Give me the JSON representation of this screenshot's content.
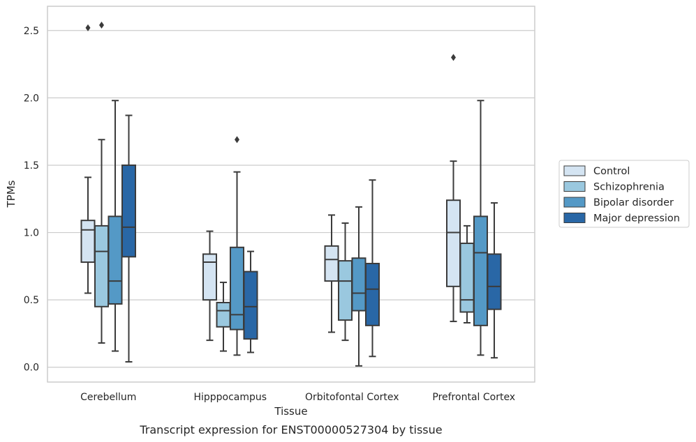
{
  "chart_data": {
    "type": "boxplot",
    "caption": "Transcript expression for ENST00000527304 by tissue",
    "xlabel": "Tissue",
    "ylabel": "TPMs",
    "ylim": [
      -0.11,
      2.68
    ],
    "yticks": [
      0.0,
      0.5,
      1.0,
      1.5,
      2.0,
      2.5
    ],
    "ytick_labels": [
      "0.0",
      "0.5",
      "1.0",
      "1.5",
      "2.0",
      "2.5"
    ],
    "grid": "horizontal",
    "legend_placement": "right",
    "categories": [
      "Cerebellum",
      "Hipppocampus",
      "Orbitofontal Cortex",
      "Prefrontal Cortex"
    ],
    "series": [
      {
        "name": "Control",
        "color": "#d4e4f2",
        "boxes": [
          {
            "whislo": 0.55,
            "q1": 0.78,
            "med": 1.02,
            "q3": 1.09,
            "whishi": 1.41,
            "fliers": [
              2.52
            ]
          },
          {
            "whislo": 0.2,
            "q1": 0.5,
            "med": 0.78,
            "q3": 0.84,
            "whishi": 1.01,
            "fliers": []
          },
          {
            "whislo": 0.26,
            "q1": 0.64,
            "med": 0.8,
            "q3": 0.9,
            "whishi": 1.13,
            "fliers": []
          },
          {
            "whislo": 0.34,
            "q1": 0.6,
            "med": 1.0,
            "q3": 1.24,
            "whishi": 1.53,
            "fliers": [
              2.3
            ]
          }
        ]
      },
      {
        "name": "Schizophrenia",
        "color": "#9ac8df",
        "boxes": [
          {
            "whislo": 0.18,
            "q1": 0.45,
            "med": 0.86,
            "q3": 1.05,
            "whishi": 1.69,
            "fliers": [
              2.54
            ]
          },
          {
            "whislo": 0.12,
            "q1": 0.3,
            "med": 0.42,
            "q3": 0.48,
            "whishi": 0.63,
            "fliers": []
          },
          {
            "whislo": 0.2,
            "q1": 0.35,
            "med": 0.64,
            "q3": 0.79,
            "whishi": 1.07,
            "fliers": []
          },
          {
            "whislo": 0.33,
            "q1": 0.41,
            "med": 0.5,
            "q3": 0.92,
            "whishi": 1.05,
            "fliers": []
          }
        ]
      },
      {
        "name": "Bipolar disorder",
        "color": "#5499c6",
        "boxes": [
          {
            "whislo": 0.12,
            "q1": 0.47,
            "med": 0.64,
            "q3": 1.12,
            "whishi": 1.98,
            "fliers": []
          },
          {
            "whislo": 0.09,
            "q1": 0.28,
            "med": 0.39,
            "q3": 0.89,
            "whishi": 1.45,
            "fliers": [
              1.69
            ]
          },
          {
            "whislo": 0.01,
            "q1": 0.42,
            "med": 0.55,
            "q3": 0.81,
            "whishi": 1.19,
            "fliers": []
          },
          {
            "whislo": 0.09,
            "q1": 0.31,
            "med": 0.85,
            "q3": 1.12,
            "whishi": 1.98,
            "fliers": []
          }
        ]
      },
      {
        "name": "Major depression",
        "color": "#2967a6",
        "boxes": [
          {
            "whislo": 0.04,
            "q1": 0.82,
            "med": 1.04,
            "q3": 1.5,
            "whishi": 1.87,
            "fliers": []
          },
          {
            "whislo": 0.11,
            "q1": 0.21,
            "med": 0.45,
            "q3": 0.71,
            "whishi": 0.86,
            "fliers": []
          },
          {
            "whislo": 0.08,
            "q1": 0.31,
            "med": 0.58,
            "q3": 0.77,
            "whishi": 1.39,
            "fliers": []
          },
          {
            "whislo": 0.07,
            "q1": 0.43,
            "med": 0.6,
            "q3": 0.84,
            "whishi": 1.22,
            "fliers": []
          }
        ]
      }
    ]
  }
}
